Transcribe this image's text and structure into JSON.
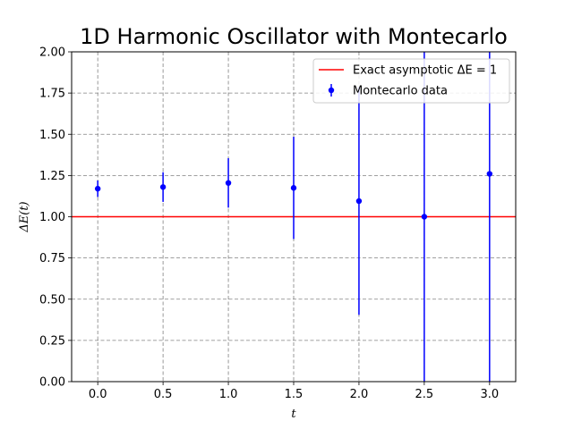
{
  "chart_data": {
    "type": "scatter",
    "title": "1D Harmonic Oscillator with Montecarlo",
    "xlabel": "t",
    "ylabel": "ΔE(t)",
    "xlim": [
      -0.2,
      3.2
    ],
    "ylim": [
      0.0,
      2.0
    ],
    "xticks": [
      0.0,
      0.5,
      1.0,
      1.5,
      2.0,
      2.5,
      3.0
    ],
    "xtick_labels": [
      "0.0",
      "0.5",
      "1.0",
      "1.5",
      "2.0",
      "2.5",
      "3.0"
    ],
    "yticks": [
      0.0,
      0.25,
      0.5,
      0.75,
      1.0,
      1.25,
      1.5,
      1.75,
      2.0
    ],
    "ytick_labels": [
      "0.00",
      "0.25",
      "0.50",
      "0.75",
      "1.00",
      "1.25",
      "1.50",
      "1.75",
      "2.00"
    ],
    "grid": true,
    "grid_style": "dashed",
    "legend_position": "top-right",
    "series": [
      {
        "name": "Exact asymptotic ΔE = 1",
        "kind": "hline",
        "y": 1.0,
        "color": "#ff0000"
      },
      {
        "name": "Montecarlo data",
        "kind": "errorbar",
        "color": "#0000ff",
        "x": [
          0.0,
          0.5,
          1.0,
          1.5,
          2.0,
          2.5,
          3.0
        ],
        "y": [
          1.17,
          1.18,
          1.205,
          1.175,
          1.095,
          1.0,
          1.26
        ],
        "yerr": [
          0.05,
          0.09,
          0.15,
          0.31,
          0.69,
          1.05,
          1.3
        ]
      }
    ]
  }
}
